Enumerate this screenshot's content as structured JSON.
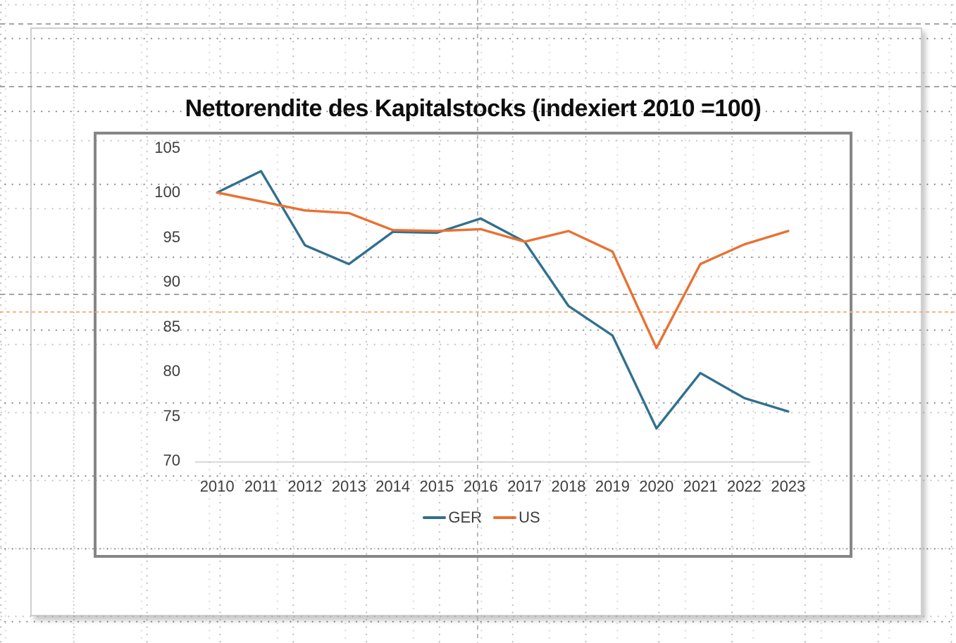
{
  "chart_data": {
    "type": "line",
    "title": "Nettorendite des Kapitalstocks (indexiert 2010 =100)",
    "categories": [
      "2010",
      "2011",
      "2012",
      "2013",
      "2014",
      "2015",
      "2016",
      "2017",
      "2018",
      "2019",
      "2020",
      "2021",
      "2022",
      "2023"
    ],
    "series": [
      {
        "name": "GER",
        "color": "#31708F",
        "values": [
          100,
          102.4,
          94.1,
          92.0,
          95.6,
          95.5,
          97.1,
          94.5,
          87.3,
          84.0,
          73.6,
          79.8,
          77.0,
          75.5
        ]
      },
      {
        "name": "US",
        "color": "#E97132",
        "values": [
          100,
          99.0,
          98.0,
          97.7,
          95.8,
          95.7,
          95.9,
          94.5,
          95.7,
          93.4,
          82.6,
          92.0,
          94.2,
          95.7
        ]
      }
    ],
    "ylim": [
      70,
      105
    ],
    "yticks": [
      105,
      100,
      95,
      90,
      85,
      80,
      75,
      70
    ],
    "xlabel": "",
    "ylabel": "",
    "legend_position": "bottom-center",
    "gridlines": "baseline axis line only"
  },
  "canvas": {
    "axis_line_color": "#D9D9D9",
    "label_color": "#3D3D3D",
    "chart_frame_color": "#868686",
    "guide_color_gray": "#949494",
    "guide_color_orange": "#F5AD74"
  }
}
